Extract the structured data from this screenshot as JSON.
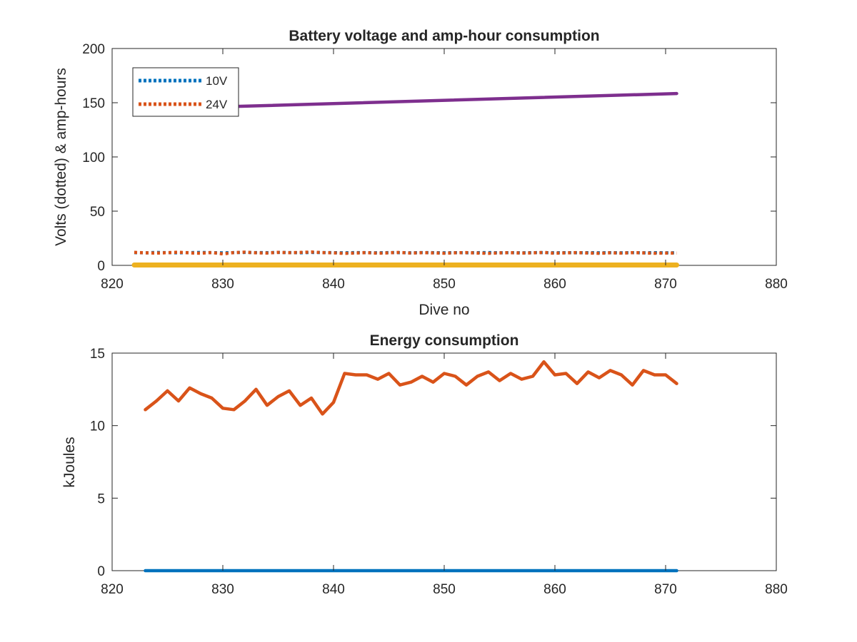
{
  "chart_data": [
    {
      "type": "line",
      "title": "Battery voltage and amp-hour consumption",
      "xlabel": "Dive no",
      "ylabel": "Volts (dotted) & amp-hours",
      "xlim": [
        820,
        880
      ],
      "ylim": [
        0,
        200
      ],
      "xticks": [
        820,
        830,
        840,
        850,
        860,
        870,
        880
      ],
      "yticks": [
        0,
        50,
        100,
        150,
        200
      ],
      "grid": false,
      "legend": {
        "placement": "top-left",
        "entries": [
          "10V",
          "24V"
        ]
      },
      "series": [
        {
          "name": "10V",
          "style": "dotted",
          "color": "#0072BD",
          "x": [
            822,
            823,
            824,
            825,
            826,
            827,
            828,
            829,
            830,
            831,
            832,
            833,
            834,
            835,
            836,
            837,
            838,
            839,
            840,
            841,
            842,
            843,
            844,
            845,
            846,
            847,
            848,
            849,
            850,
            851,
            852,
            853,
            854,
            855,
            856,
            857,
            858,
            859,
            860,
            861,
            862,
            863,
            864,
            865,
            866,
            867,
            868,
            869,
            870,
            871
          ],
          "y": [
            11.8,
            11.5,
            11.9,
            11.7,
            11.6,
            11.8,
            11.9,
            11.7,
            11.5,
            11.8,
            11.9,
            11.8,
            11.7,
            11.9,
            11.8,
            11.6,
            11.9,
            11.8,
            11.7,
            11.6,
            11.8,
            11.7,
            11.6,
            11.8,
            11.7,
            11.6,
            11.8,
            11.7,
            11.6,
            11.7,
            11.6,
            11.7,
            11.8,
            11.6,
            11.7,
            11.6,
            11.7,
            11.8,
            11.6,
            11.7,
            11.6,
            11.7,
            11.6,
            11.7,
            11.6,
            11.7,
            11.6,
            11.7,
            11.6,
            11.6
          ]
        },
        {
          "name": "24V",
          "style": "dotted",
          "color": "#D95319",
          "x": [
            822,
            823,
            824,
            825,
            826,
            827,
            828,
            829,
            830,
            831,
            832,
            833,
            834,
            835,
            836,
            837,
            838,
            839,
            840,
            841,
            842,
            843,
            844,
            845,
            846,
            847,
            848,
            849,
            850,
            851,
            852,
            853,
            854,
            855,
            856,
            857,
            858,
            859,
            860,
            861,
            862,
            863,
            864,
            865,
            866,
            867,
            868,
            869,
            870,
            871
          ],
          "y": [
            12.0,
            11.6,
            11.3,
            11.7,
            12.1,
            11.5,
            11.2,
            11.9,
            10.6,
            11.8,
            12.2,
            11.6,
            11.4,
            12.0,
            11.7,
            11.9,
            12.3,
            11.8,
            11.5,
            11.1,
            11.4,
            11.8,
            11.2,
            11.6,
            11.9,
            11.3,
            11.7,
            11.5,
            11.2,
            11.6,
            11.8,
            11.4,
            11.1,
            11.5,
            11.7,
            11.3,
            11.6,
            11.9,
            11.2,
            11.5,
            11.8,
            11.4,
            11.1,
            11.6,
            11.3,
            11.7,
            11.5,
            11.2,
            11.4,
            11.3
          ]
        },
        {
          "style": "solid",
          "color": "#7E2F8E",
          "x": [
            831,
            871
          ],
          "y": [
            146.5,
            158.5
          ]
        },
        {
          "style": "solid",
          "color": "#EDB120",
          "x": [
            822,
            871
          ],
          "y": [
            0.3,
            0.3
          ]
        }
      ]
    },
    {
      "type": "line",
      "title": "Energy consumption",
      "xlabel": "",
      "ylabel": "kJoules",
      "xlim": [
        820,
        880
      ],
      "ylim": [
        0,
        15
      ],
      "xticks": [
        820,
        830,
        840,
        850,
        860,
        870,
        880
      ],
      "yticks": [
        0,
        5,
        10,
        15
      ],
      "grid": false,
      "series": [
        {
          "style": "solid",
          "color": "#D95319",
          "x": [
            823,
            824,
            825,
            826,
            827,
            828,
            829,
            830,
            831,
            832,
            833,
            834,
            835,
            836,
            837,
            838,
            839,
            840,
            841,
            842,
            843,
            844,
            845,
            846,
            847,
            848,
            849,
            850,
            851,
            852,
            853,
            854,
            855,
            856,
            857,
            858,
            859,
            860,
            861,
            862,
            863,
            864,
            865,
            866,
            867,
            868,
            869,
            870,
            871
          ],
          "y": [
            11.1,
            11.7,
            12.4,
            11.7,
            12.6,
            12.2,
            11.9,
            11.2,
            11.1,
            11.7,
            12.5,
            11.4,
            12.0,
            12.4,
            11.4,
            11.9,
            10.8,
            11.6,
            13.6,
            13.5,
            13.5,
            13.2,
            13.6,
            12.8,
            13.0,
            13.4,
            13.0,
            13.6,
            13.4,
            12.8,
            13.4,
            13.7,
            13.1,
            13.6,
            13.2,
            13.4,
            14.4,
            13.5,
            13.6,
            12.9,
            13.7,
            13.3,
            13.8,
            13.5,
            12.8,
            13.8,
            13.5,
            13.5,
            12.9
          ]
        },
        {
          "style": "solid",
          "color": "#0072BD",
          "x": [
            823,
            871
          ],
          "y": [
            0,
            0
          ]
        }
      ]
    }
  ]
}
